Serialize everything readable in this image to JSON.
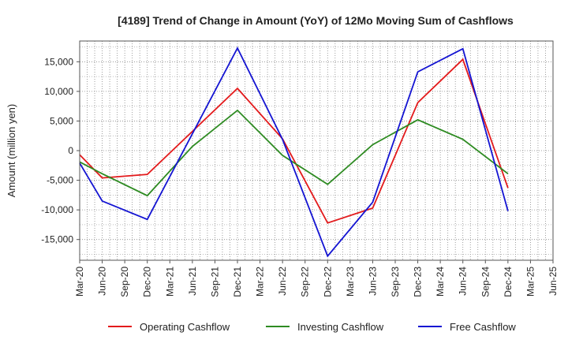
{
  "chart_data": {
    "type": "line",
    "title": "[4189]  Trend of Change in Amount (YoY) of 12Mo Moving Sum of Cashflows",
    "xlabel": "",
    "ylabel": "Amount (million yen)",
    "categories": [
      "Mar-20",
      "Jun-20",
      "Sep-20",
      "Dec-20",
      "Mar-21",
      "Jun-21",
      "Sep-21",
      "Dec-21",
      "Mar-22",
      "Jun-22",
      "Sep-22",
      "Dec-22",
      "Mar-23",
      "Jun-23",
      "Sep-23",
      "Dec-23",
      "Mar-24",
      "Jun-24",
      "Sep-24",
      "Dec-24",
      "Mar-25",
      "Jun-25"
    ],
    "ylim": [
      -18500,
      18500
    ],
    "yticks": [
      15000,
      10000,
      5000,
      0,
      -5000,
      -10000,
      -15000
    ],
    "ytick_labels": [
      "15,000",
      "10,000",
      "5,000",
      "0",
      "-5,000",
      "-10,000",
      "-15,000"
    ],
    "grid": true,
    "legend_position": "bottom",
    "series": [
      {
        "name": "Operating Cashflow",
        "color": "#e31a1c",
        "points": [
          [
            0,
            -700
          ],
          [
            1,
            -4600
          ],
          [
            3,
            -4000
          ],
          [
            7,
            10500
          ],
          [
            9,
            2000
          ],
          [
            11,
            -12200
          ],
          [
            13,
            -9700
          ],
          [
            15,
            8100
          ],
          [
            17,
            15400
          ],
          [
            19,
            -6300
          ]
        ]
      },
      {
        "name": "Investing Cashflow",
        "color": "#2e8b22",
        "points": [
          [
            0,
            -1900
          ],
          [
            1,
            -3900
          ],
          [
            3,
            -7600
          ],
          [
            5,
            700
          ],
          [
            7,
            6800
          ],
          [
            9,
            -800
          ],
          [
            11,
            -5700
          ],
          [
            13,
            1000
          ],
          [
            15,
            5200
          ],
          [
            17,
            1900
          ],
          [
            19,
            -3900
          ]
        ]
      },
      {
        "name": "Free Cashflow",
        "color": "#1414d2",
        "points": [
          [
            0,
            -2100
          ],
          [
            1,
            -8500
          ],
          [
            3,
            -11600
          ],
          [
            7,
            17300
          ],
          [
            9,
            1900
          ],
          [
            11,
            -17800
          ],
          [
            13,
            -8700
          ],
          [
            15,
            13300
          ],
          [
            17,
            17200
          ],
          [
            19,
            -10200
          ]
        ]
      }
    ]
  }
}
